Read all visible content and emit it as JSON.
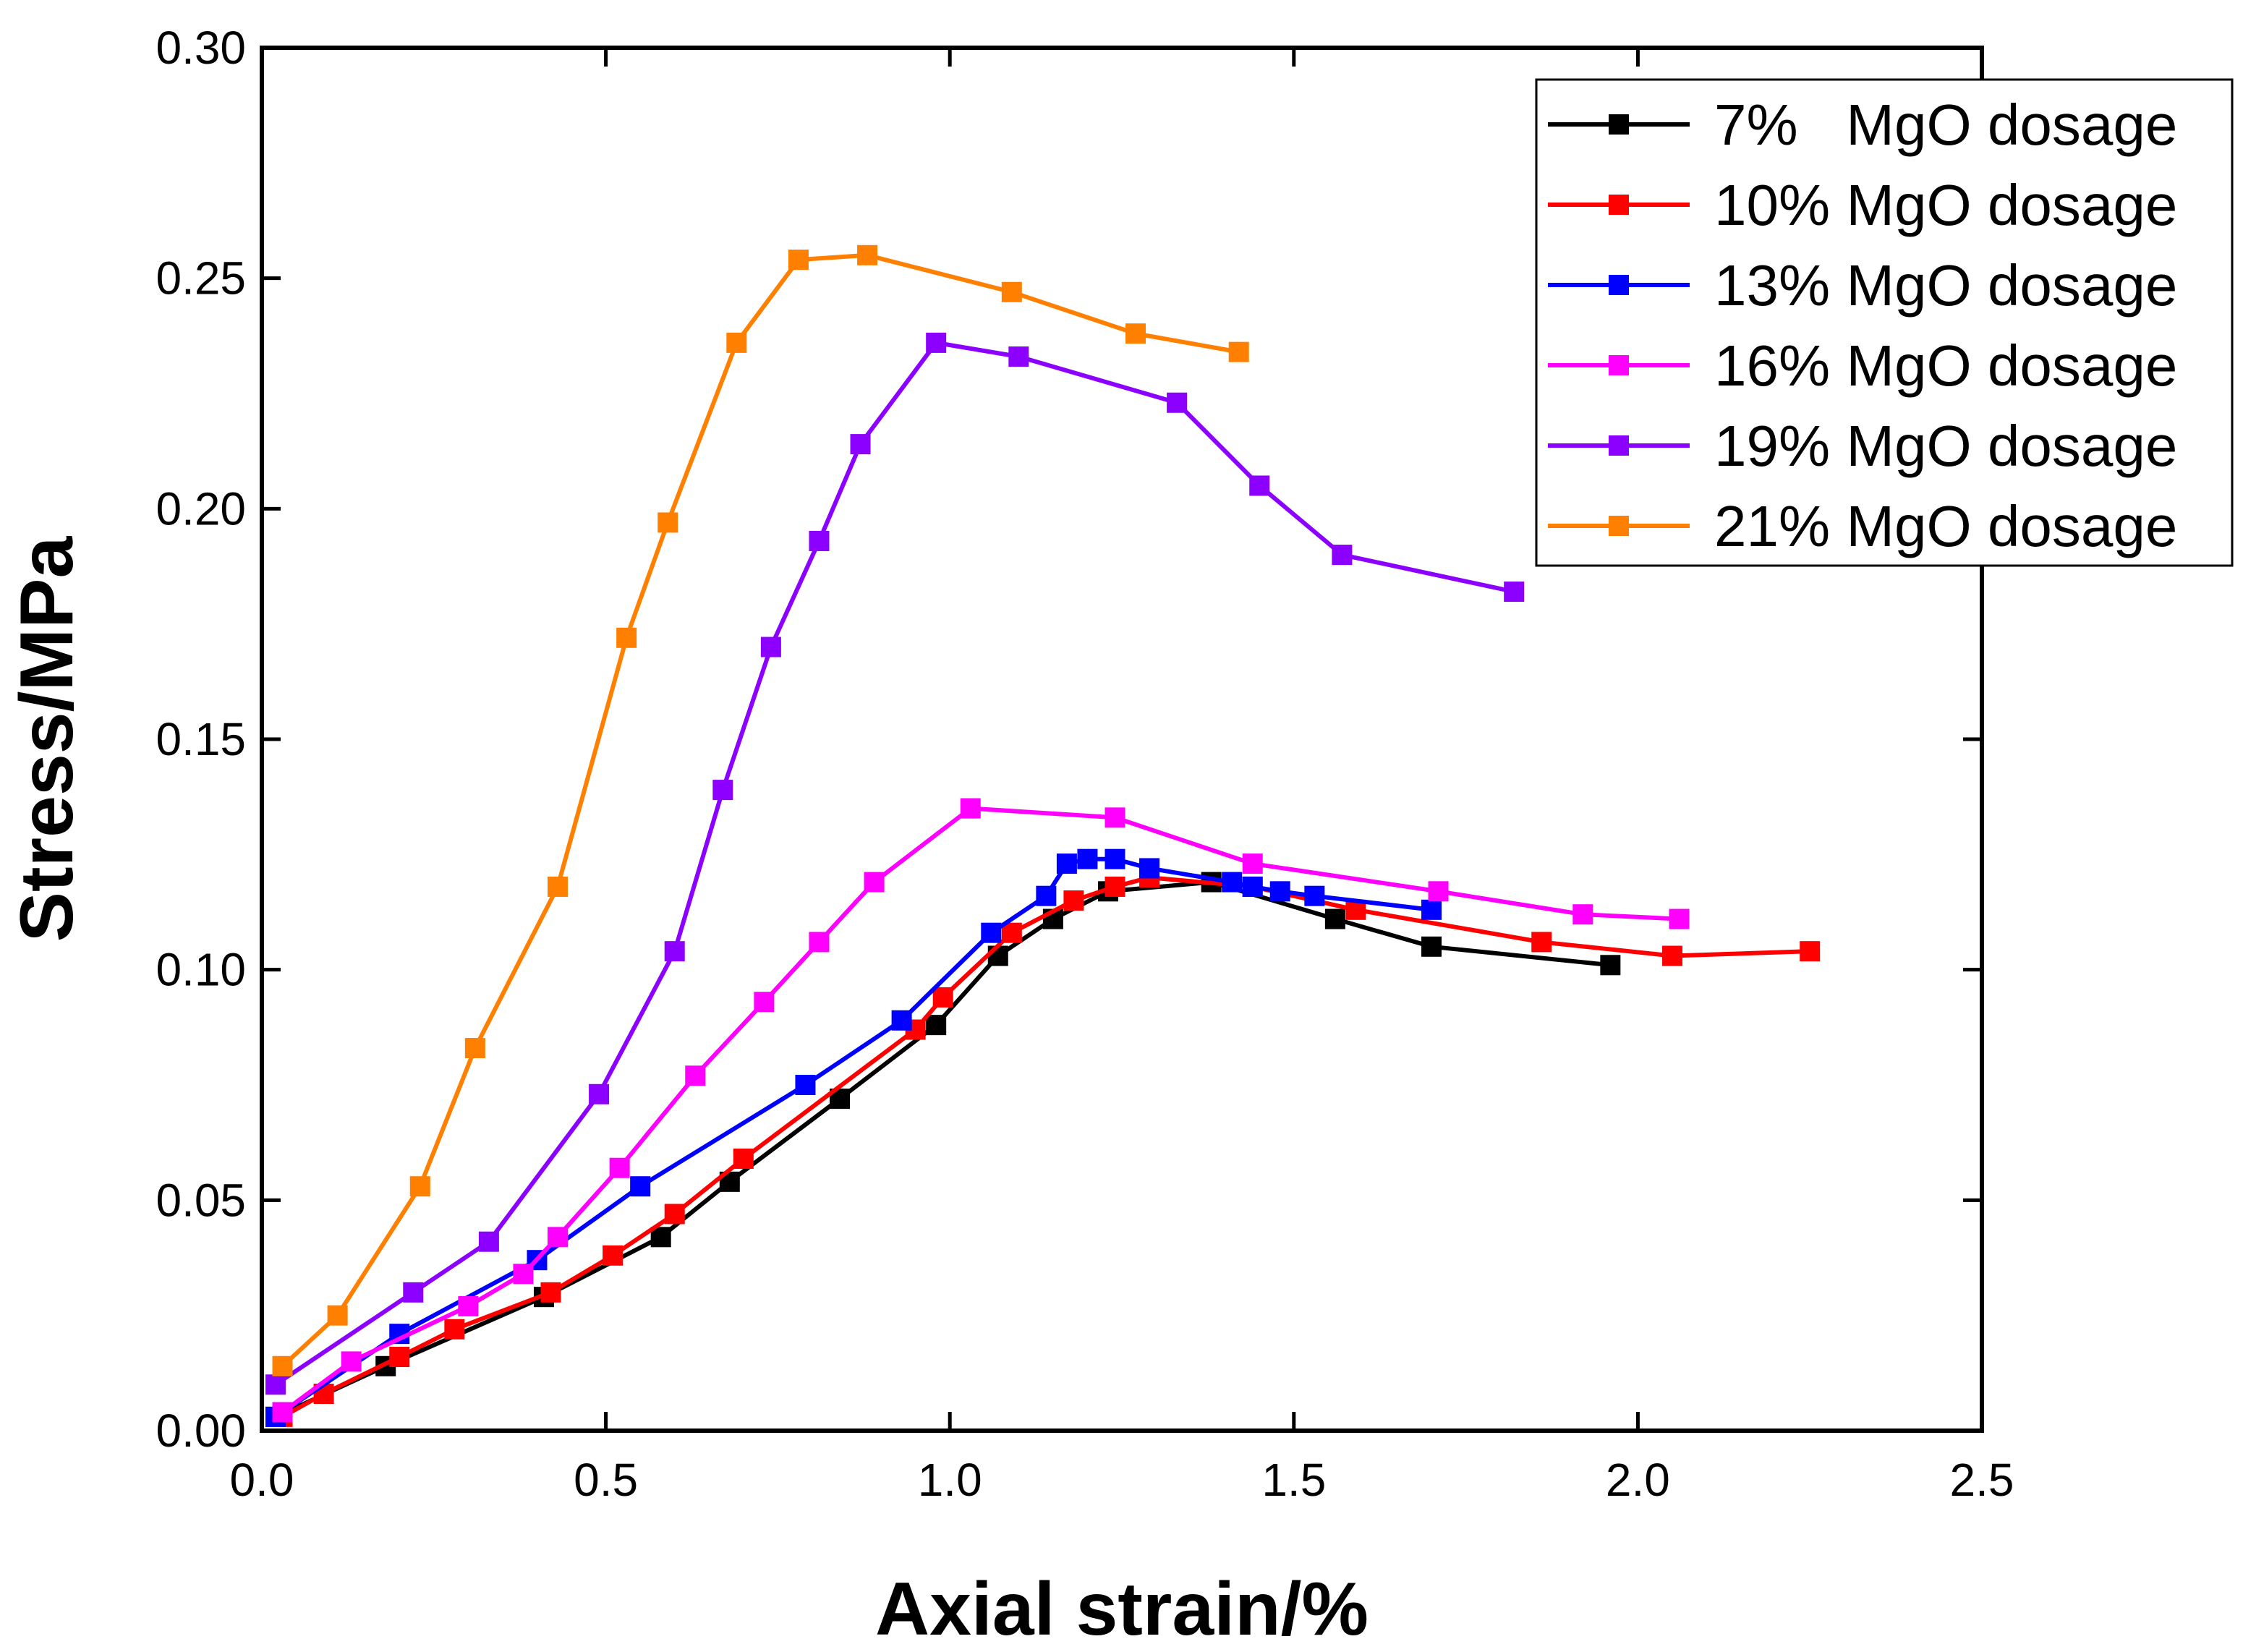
{
  "chart_data": {
    "type": "line",
    "title": "",
    "xlabel": "Axial strain/%",
    "ylabel": "Stress/MPa",
    "xlim": [
      0,
      2.5
    ],
    "ylim": [
      0,
      0.3
    ],
    "xticks": [
      "0.0",
      "0.5",
      "1.0",
      "1.5",
      "2.0",
      "2.5"
    ],
    "yticks": [
      "0.00",
      "0.05",
      "0.10",
      "0.15",
      "0.20",
      "0.25",
      "0.30"
    ],
    "grid": false,
    "legend_position": "top-right",
    "series": [
      {
        "name": "7%   MgO dosage",
        "color": "#000000",
        "x": [
          0.02,
          0.18,
          0.41,
          0.58,
          0.68,
          0.84,
          0.98,
          1.07,
          1.15,
          1.23,
          1.38,
          1.56,
          1.7,
          1.96
        ],
        "y": [
          0.003,
          0.014,
          0.029,
          0.042,
          0.054,
          0.072,
          0.088,
          0.103,
          0.111,
          0.117,
          0.119,
          0.111,
          0.105,
          0.101
        ]
      },
      {
        "name": "10% MgO dosage",
        "color": "#FF0000",
        "x": [
          0.03,
          0.09,
          0.2,
          0.28,
          0.42,
          0.51,
          0.6,
          0.7,
          0.95,
          0.99,
          1.09,
          1.18,
          1.24,
          1.29,
          1.44,
          1.59,
          1.86,
          2.05,
          2.25
        ],
        "y": [
          0.003,
          0.008,
          0.016,
          0.022,
          0.03,
          0.038,
          0.047,
          0.059,
          0.087,
          0.094,
          0.108,
          0.115,
          0.118,
          0.12,
          0.118,
          0.113,
          0.106,
          0.103,
          0.104
        ]
      },
      {
        "name": "13% MgO dosage",
        "color": "#0000FF",
        "x": [
          0.02,
          0.2,
          0.4,
          0.55,
          0.79,
          0.93,
          1.06,
          1.14,
          1.17,
          1.2,
          1.24,
          1.29,
          1.41,
          1.44,
          1.48,
          1.53,
          1.7
        ],
        "y": [
          0.003,
          0.021,
          0.037,
          0.053,
          0.075,
          0.089,
          0.108,
          0.116,
          0.123,
          0.124,
          0.124,
          0.122,
          0.119,
          0.118,
          0.117,
          0.116,
          0.113
        ]
      },
      {
        "name": "16% MgO dosage",
        "color": "#FF00FF",
        "x": [
          0.03,
          0.13,
          0.3,
          0.38,
          0.43,
          0.52,
          0.63,
          0.73,
          0.81,
          0.89,
          1.03,
          1.24,
          1.44,
          1.71,
          1.92,
          2.06
        ],
        "y": [
          0.004,
          0.015,
          0.027,
          0.034,
          0.042,
          0.057,
          0.077,
          0.093,
          0.106,
          0.119,
          0.135,
          0.133,
          0.123,
          0.117,
          0.112,
          0.111
        ]
      },
      {
        "name": "19% MgO dosage",
        "color": "#8B00FF",
        "x": [
          0.02,
          0.22,
          0.33,
          0.49,
          0.6,
          0.67,
          0.74,
          0.81,
          0.87,
          0.98,
          1.1,
          1.33,
          1.45,
          1.57,
          1.82
        ],
        "y": [
          0.01,
          0.03,
          0.041,
          0.073,
          0.104,
          0.139,
          0.17,
          0.193,
          0.214,
          0.236,
          0.233,
          0.223,
          0.205,
          0.19,
          0.182
        ]
      },
      {
        "name": "21% MgO dosage",
        "color": "#FF8000",
        "x": [
          0.03,
          0.11,
          0.23,
          0.31,
          0.43,
          0.53,
          0.59,
          0.69,
          0.78,
          0.88,
          1.09,
          1.27,
          1.42
        ],
        "y": [
          0.014,
          0.025,
          0.053,
          0.083,
          0.118,
          0.172,
          0.197,
          0.236,
          0.254,
          0.255,
          0.247,
          0.238,
          0.234
        ]
      }
    ]
  }
}
